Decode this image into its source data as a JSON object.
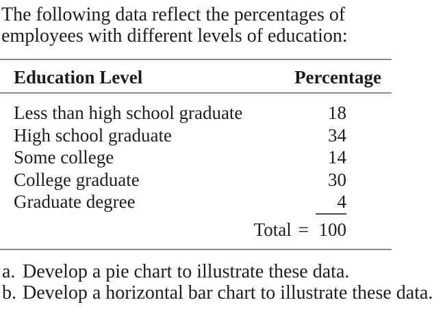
{
  "intro": "The following data reflect the percentages of employees with different levels of education:",
  "table": {
    "headers": {
      "level": "Education Level",
      "percentage": "Percentage"
    },
    "rows": [
      {
        "label": "Less than high school graduate",
        "value": "18"
      },
      {
        "label": "High school graduate",
        "value": "34"
      },
      {
        "label": "Some college",
        "value": "14"
      },
      {
        "label": "College graduate",
        "value": "30"
      },
      {
        "label": "Graduate degree",
        "value": "4"
      }
    ],
    "total": {
      "label": "Total",
      "equals": "=",
      "value": "100"
    }
  },
  "questions": [
    {
      "marker": "a.",
      "text": "Develop a pie chart to illustrate these data."
    },
    {
      "marker": "b.",
      "text": "Develop a horizontal bar chart to illustrate these data."
    }
  ],
  "colors": {
    "text": "#1c1c22",
    "rule": "#8a8a92",
    "sum_rule": "#4a4a52",
    "background": "#ffffff"
  }
}
